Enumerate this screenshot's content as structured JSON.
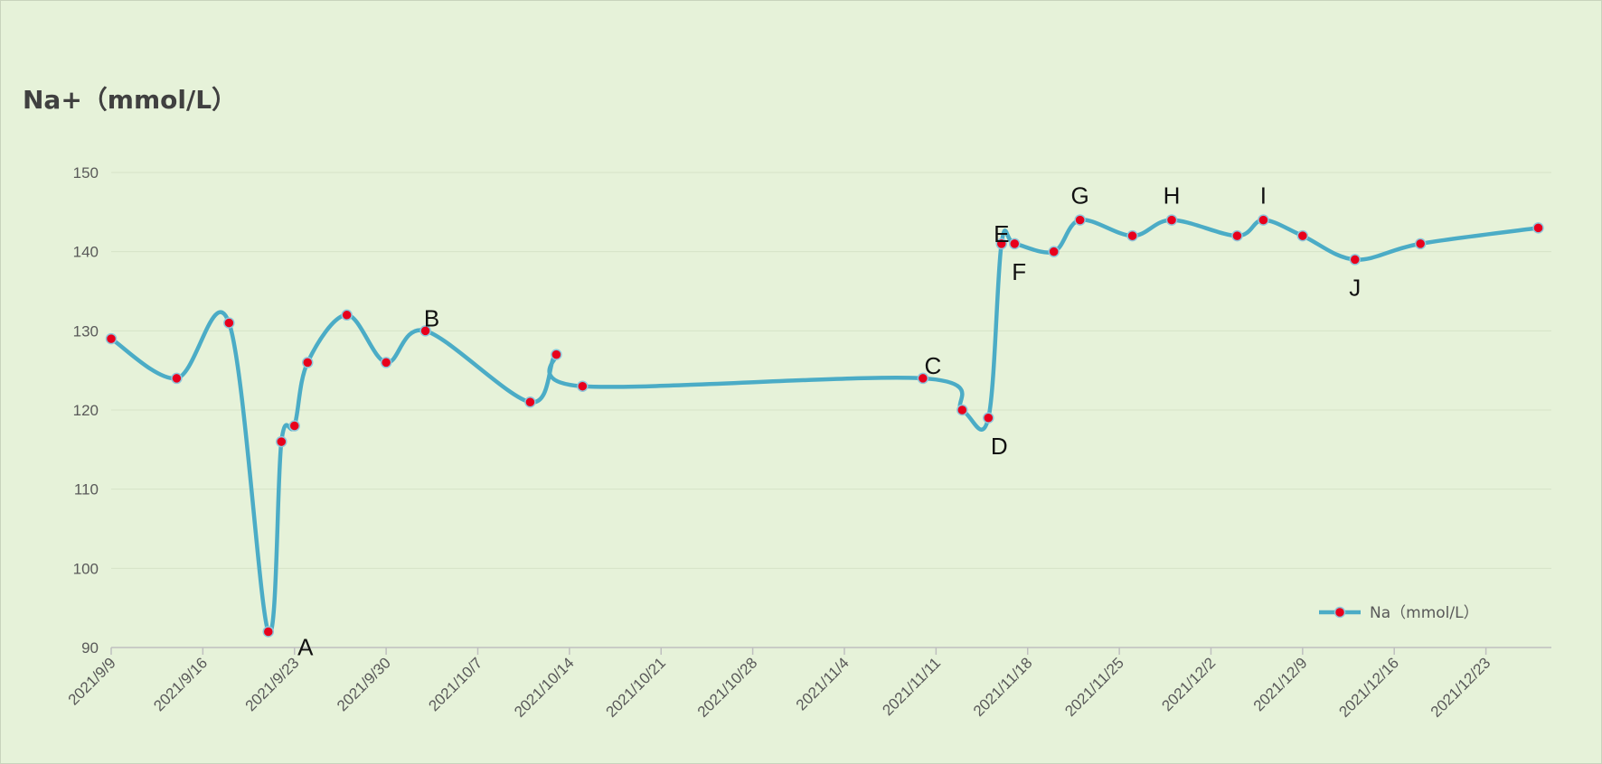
{
  "chart_data": {
    "type": "line",
    "title": "Na+（mmol/L）",
    "ylim": [
      90,
      150
    ],
    "yticks": [
      90,
      100,
      110,
      120,
      130,
      140,
      150
    ],
    "xlim": [
      "2021/9/9",
      "2021/12/28"
    ],
    "xticks": [
      "2021/9/9",
      "2021/9/16",
      "2021/9/23",
      "2021/9/30",
      "2021/10/7",
      "2021/10/14",
      "2021/10/21",
      "2021/10/28",
      "2021/11/4",
      "2021/11/11",
      "2021/11/18",
      "2021/11/25",
      "2021/12/2",
      "2021/12/9",
      "2021/12/16",
      "2021/12/23"
    ],
    "grid": true,
    "legend_position": "bottom-right",
    "series": [
      {
        "name": "Na（mmol/L）",
        "color": "#4bacc6",
        "marker_color": "#e8001c",
        "points": [
          {
            "x": "2021/9/9",
            "y": 129
          },
          {
            "x": "2021/9/14",
            "y": 124
          },
          {
            "x": "2021/9/18",
            "y": 131
          },
          {
            "x": "2021/9/21",
            "y": 92
          },
          {
            "x": "2021/9/22",
            "y": 116
          },
          {
            "x": "2021/9/23",
            "y": 118
          },
          {
            "x": "2021/9/24",
            "y": 126
          },
          {
            "x": "2021/9/27",
            "y": 132
          },
          {
            "x": "2021/9/30",
            "y": 126
          },
          {
            "x": "2021/10/3",
            "y": 130
          },
          {
            "x": "2021/10/11",
            "y": 121
          },
          {
            "x": "2021/10/13",
            "y": 127
          },
          {
            "x": "2021/10/15",
            "y": 123
          },
          {
            "x": "2021/11/10",
            "y": 124
          },
          {
            "x": "2021/11/13",
            "y": 120
          },
          {
            "x": "2021/11/15",
            "y": 119
          },
          {
            "x": "2021/11/16",
            "y": 141
          },
          {
            "x": "2021/11/17",
            "y": 141
          },
          {
            "x": "2021/11/20",
            "y": 140
          },
          {
            "x": "2021/11/22",
            "y": 144
          },
          {
            "x": "2021/11/26",
            "y": 142
          },
          {
            "x": "2021/11/29",
            "y": 144
          },
          {
            "x": "2021/12/4",
            "y": 142
          },
          {
            "x": "2021/12/6",
            "y": 144
          },
          {
            "x": "2021/12/9",
            "y": 142
          },
          {
            "x": "2021/12/13",
            "y": 139
          },
          {
            "x": "2021/12/18",
            "y": 141
          },
          {
            "x": "2021/12/27",
            "y": 143
          }
        ]
      }
    ],
    "annotations": [
      {
        "text": "A",
        "x": "2021/9/21",
        "y": 92
      },
      {
        "text": "B",
        "x": "2021/10/3",
        "y": 130
      },
      {
        "text": "C",
        "x": "2021/11/10",
        "y": 124
      },
      {
        "text": "D",
        "x": "2021/11/15",
        "y": 119
      },
      {
        "text": "E",
        "x": "2021/11/16",
        "y": 141
      },
      {
        "text": "F",
        "x": "2021/11/17",
        "y": 141
      },
      {
        "text": "G",
        "x": "2021/11/22",
        "y": 144
      },
      {
        "text": "H",
        "x": "2021/11/29",
        "y": 144
      },
      {
        "text": "I",
        "x": "2021/12/6",
        "y": 144
      },
      {
        "text": "J",
        "x": "2021/12/13",
        "y": 139
      }
    ]
  }
}
